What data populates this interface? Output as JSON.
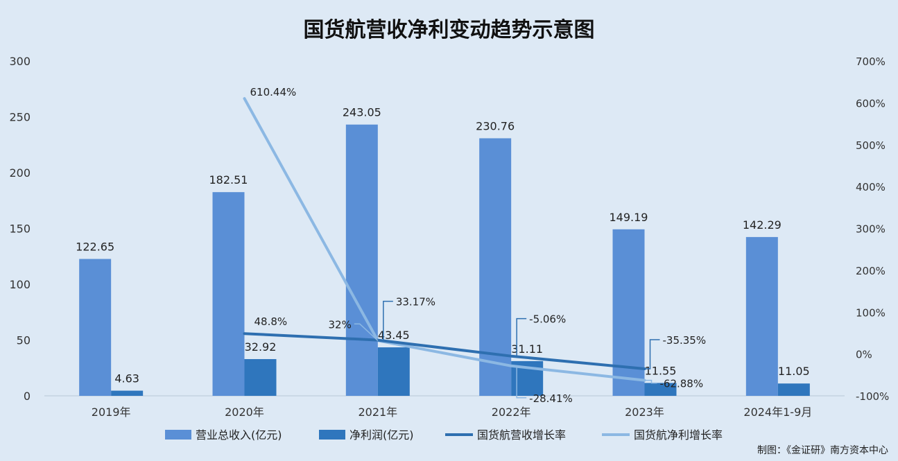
{
  "chart_data": {
    "type": "bar",
    "title": "国货航营收净利变动趋势示意图",
    "categories": [
      "2019年",
      "2020年",
      "2021年",
      "2022年",
      "2023年",
      "2024年1-9月"
    ],
    "series": [
      {
        "name": "营业总收入(亿元)",
        "kind": "bar",
        "axis": "left",
        "color": "#5a8fd6",
        "values": [
          122.65,
          182.51,
          243.05,
          230.76,
          149.19,
          142.29
        ],
        "labels": [
          "122.65",
          "182.51",
          "243.05",
          "230.76",
          "149.19",
          "142.29"
        ]
      },
      {
        "name": "净利润(亿元)",
        "kind": "bar",
        "axis": "left",
        "color": "#2f76bd",
        "values": [
          4.63,
          32.92,
          43.45,
          31.11,
          11.55,
          11.05
        ],
        "labels": [
          "4.63",
          "32.92",
          "43.45",
          "31.11",
          "11.55",
          "11.05"
        ]
      },
      {
        "name": "国货航营收增长率",
        "kind": "line",
        "axis": "right",
        "color": "#2e6fb0",
        "values": [
          null,
          48.8,
          33.17,
          -5.06,
          -35.35,
          null
        ],
        "labels": [
          "",
          "48.8%",
          "33.17%",
          "-5.06%",
          "-35.35%",
          ""
        ]
      },
      {
        "name": "国货航净利增长率",
        "kind": "line",
        "axis": "right",
        "color": "#8cb8e3",
        "values": [
          null,
          610.44,
          32,
          -28.41,
          -62.88,
          null
        ],
        "labels": [
          "",
          "610.44%",
          "32%",
          "-28.41%",
          "-62.88%",
          ""
        ]
      }
    ],
    "y_left": {
      "min": 0,
      "max": 300,
      "ticks": [
        "0",
        "50",
        "100",
        "150",
        "200",
        "250",
        "300"
      ]
    },
    "y_right": {
      "min": -100,
      "max": 700,
      "ticks": [
        "-100%",
        "0%",
        "100%",
        "200%",
        "300%",
        "400%",
        "500%",
        "600%",
        "700%"
      ]
    },
    "legend_position": "bottom",
    "grid": false,
    "source": "制图：《金证研》南方资本中心"
  }
}
